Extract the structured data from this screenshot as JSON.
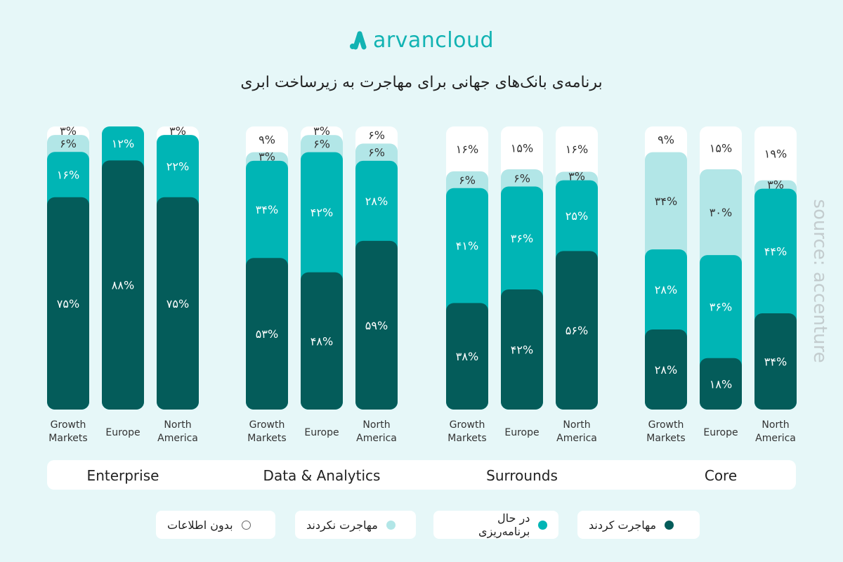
{
  "logo": {
    "text": "arvancloud",
    "color": "#12b3b3"
  },
  "title": "برنامه‌ی بانک‌های جهانی برای مهاجرت به زیرساخت ابری",
  "source": "source: accenture",
  "chart_data": {
    "type": "bar",
    "stacked": true,
    "value_unit": "%",
    "groups": [
      "Enterprise",
      "Data & Analytics",
      "Surrounds",
      "Core"
    ],
    "categories": [
      [
        "Growth",
        "Markets"
      ],
      [
        "Europe"
      ],
      [
        "North",
        "America"
      ]
    ],
    "series": [
      {
        "name": "مهاجرت کردند",
        "color": "#045c5a",
        "values": [
          [
            75,
            88,
            75
          ],
          [
            53,
            48,
            59
          ],
          [
            38,
            42,
            56
          ],
          [
            28,
            18,
            34
          ]
        ]
      },
      {
        "name": "در حال برنامه‌ریزی",
        "color": "#00b5b5",
        "values": [
          [
            16,
            12,
            22
          ],
          [
            34,
            42,
            28
          ],
          [
            41,
            36,
            25
          ],
          [
            28,
            36,
            44
          ]
        ]
      },
      {
        "name": "مهاجرت نکردند",
        "color": "#b2e6e7",
        "values": [
          [
            6,
            0,
            0
          ],
          [
            3,
            6,
            6
          ],
          [
            6,
            6,
            3
          ],
          [
            34,
            30,
            3
          ]
        ]
      },
      {
        "name": "بدون اطلاعات",
        "color": "#ffffff",
        "values": [
          [
            3,
            0,
            3
          ],
          [
            9,
            3,
            6
          ],
          [
            16,
            15,
            16
          ],
          [
            9,
            15,
            19
          ]
        ]
      }
    ],
    "ylim": [
      0,
      100
    ]
  }
}
